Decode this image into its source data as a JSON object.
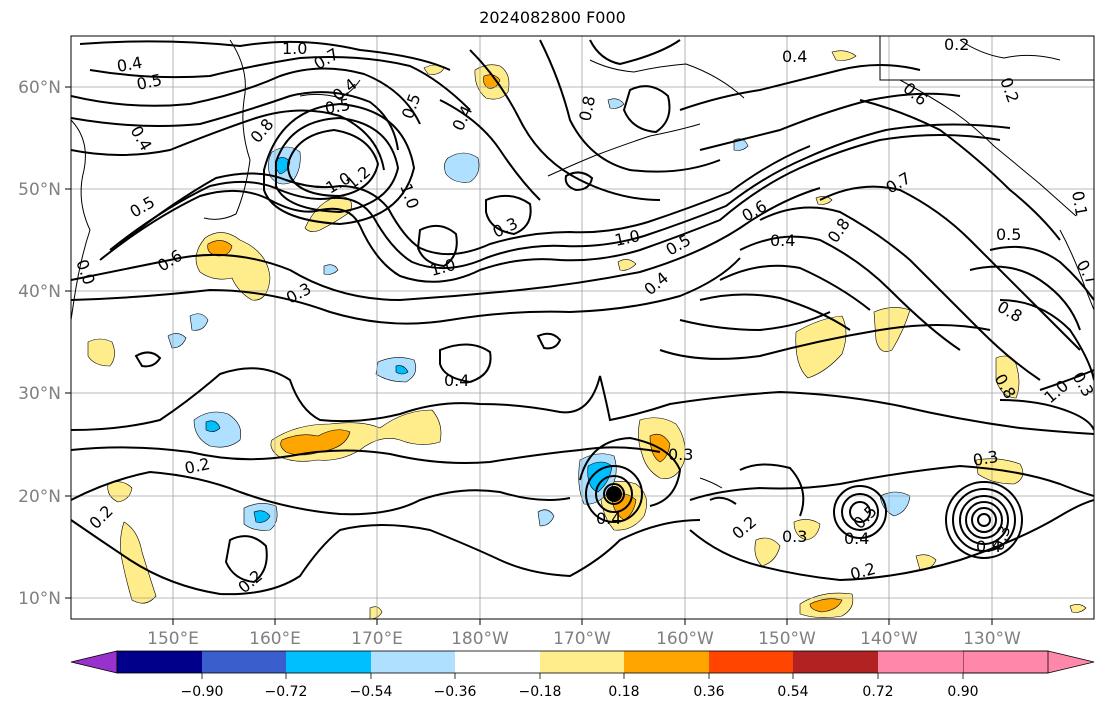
{
  "title": "2024082800 F000",
  "map": {
    "lon_labels": [
      "150°E",
      "160°E",
      "170°E",
      "180°W",
      "170°W",
      "160°W",
      "150°W",
      "140°W",
      "130°W"
    ],
    "lat_labels": [
      "60°N",
      "50°N",
      "40°N",
      "30°N",
      "20°N",
      "10°N"
    ],
    "contour_labels": [
      {
        "id": "c1",
        "text": "0.4"
      },
      {
        "id": "c2",
        "text": "0.5"
      },
      {
        "id": "c3",
        "text": "1.0"
      },
      {
        "id": "c4",
        "text": "0.7"
      },
      {
        "id": "c5",
        "text": "0.4"
      },
      {
        "id": "c6",
        "text": "0.5"
      },
      {
        "id": "c7",
        "text": "0.4"
      },
      {
        "id": "c8",
        "text": "0.8"
      },
      {
        "id": "c9",
        "text": "0.5"
      },
      {
        "id": "c10",
        "text": "0.6"
      },
      {
        "id": "c11",
        "text": "0.3"
      },
      {
        "id": "c12",
        "text": "1.0"
      },
      {
        "id": "c13",
        "text": "1.2"
      },
      {
        "id": "c14",
        "text": "0.5"
      },
      {
        "id": "c15",
        "text": "0.4"
      },
      {
        "id": "c16",
        "text": "0.8"
      },
      {
        "id": "c17",
        "text": "1.0"
      },
      {
        "id": "c18",
        "text": "0.3"
      },
      {
        "id": "c19",
        "text": "1.0"
      },
      {
        "id": "c20",
        "text": "0.4"
      },
      {
        "id": "c21",
        "text": "1.0"
      },
      {
        "id": "c22",
        "text": "0.5"
      },
      {
        "id": "c23",
        "text": "0.6"
      },
      {
        "id": "c24",
        "text": "0.4"
      },
      {
        "id": "c25",
        "text": "0.7"
      },
      {
        "id": "c26",
        "text": "0.8"
      },
      {
        "id": "c27",
        "text": "0.4"
      },
      {
        "id": "c28",
        "text": "0.2"
      },
      {
        "id": "c29",
        "text": "0.6"
      },
      {
        "id": "c30",
        "text": "0.2"
      },
      {
        "id": "c31",
        "text": "0.5"
      },
      {
        "id": "c32",
        "text": "0.8"
      },
      {
        "id": "c33",
        "text": "0.8"
      },
      {
        "id": "c34",
        "text": "1.0"
      },
      {
        "id": "c35",
        "text": "0.4"
      },
      {
        "id": "c36",
        "text": "0.2"
      },
      {
        "id": "c37",
        "text": "0.2"
      },
      {
        "id": "c38",
        "text": "0.2"
      },
      {
        "id": "c39",
        "text": "0.3"
      },
      {
        "id": "c40",
        "text": "0.4"
      },
      {
        "id": "c41",
        "text": "0.2"
      },
      {
        "id": "c42",
        "text": "0.3"
      },
      {
        "id": "c43",
        "text": "0.5"
      },
      {
        "id": "c44",
        "text": "0.4"
      },
      {
        "id": "c45",
        "text": "0.2"
      },
      {
        "id": "c46",
        "text": "0.3"
      },
      {
        "id": "c47",
        "text": "0.4"
      },
      {
        "id": "c48",
        "text": "0.3"
      },
      {
        "id": "c49",
        "text": "0.3"
      },
      {
        "id": "c50",
        "text": "0.7"
      },
      {
        "id": "c51",
        "text": "0.1"
      },
      {
        "id": "c52",
        "text": "0.0"
      }
    ]
  },
  "colorbar": {
    "ticks": [
      "−0.90",
      "−0.72",
      "−0.54",
      "−0.36",
      "−0.18",
      "0.18",
      "0.36",
      "0.54",
      "0.72",
      "0.90"
    ],
    "colors": [
      "#9932cc",
      "#00008b",
      "#3a5fcd",
      "#00bfff",
      "#b0e0ff",
      "#ffffff",
      "#ffec8b",
      "#ffa500",
      "#ff4500",
      "#b22222",
      "#ff88aa"
    ]
  },
  "colors": {
    "pos_light": "#ffec8b",
    "pos_mid": "#ffa500",
    "neg_light": "#b0e0ff",
    "neg_mid": "#00bfff"
  }
}
